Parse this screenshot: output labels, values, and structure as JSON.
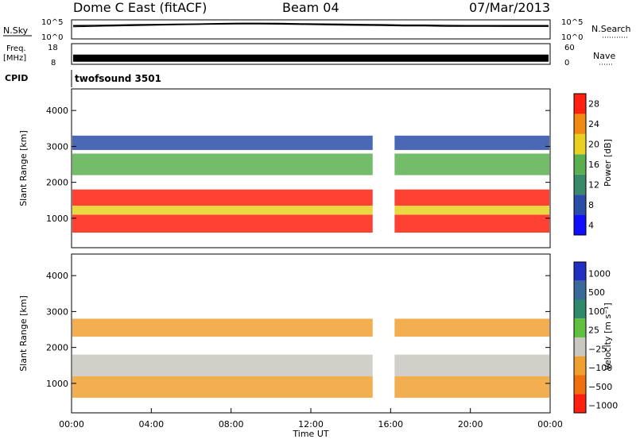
{
  "header": {
    "title": "Dome C East (fitACF)",
    "beam": "Beam 04",
    "date": "07/Mar/2013"
  },
  "chart_data": [
    {
      "type": "line",
      "panel": "nsky",
      "left_label": "N.Sky",
      "right_label": "N.Search",
      "left_ticks": [
        "10^5",
        "10^0"
      ],
      "right_ticks": [
        "10^5",
        "10^0"
      ],
      "yscale": "log",
      "ylim": [
        1,
        100000
      ],
      "series": [
        {
          "values": [
            3000,
            3500,
            4000,
            5000,
            6000,
            7000,
            8000,
            10000,
            12000,
            12000,
            11000,
            9000,
            8000,
            7000,
            6000,
            5000,
            4000,
            4000,
            3500,
            3000,
            3000,
            3000,
            3000,
            3000
          ]
        },
        {
          "values": [
            1500,
            2000,
            2500,
            3000,
            4000,
            5000,
            6000,
            7000,
            8000,
            8000,
            7000,
            6000,
            5000,
            4000,
            3500,
            3000,
            2500,
            2500,
            2000,
            2000,
            2000,
            1800,
            1800,
            1800
          ]
        }
      ]
    },
    {
      "type": "line",
      "panel": "freq",
      "left_label_line1": "Freq.",
      "left_label_line2": "[MHz]",
      "right_label": "Nave",
      "left_ticks": [
        "18",
        "8"
      ],
      "right_ticks": [
        "60",
        "0"
      ],
      "ylim": [
        8,
        18
      ],
      "series": [
        {
          "values": [
            11,
            11,
            11,
            11,
            11,
            11,
            11,
            11,
            11,
            11,
            11,
            11,
            11,
            11,
            11,
            11,
            11,
            11,
            11,
            11,
            11,
            11,
            11,
            11,
            11
          ]
        }
      ]
    },
    {
      "type": "table",
      "panel": "cpid",
      "label": "CPID",
      "value": "twofsound 3501"
    },
    {
      "type": "heatmap",
      "panel": "power",
      "ylabel": "Slant Range [km]",
      "yticks": [
        "1000",
        "2000",
        "3000",
        "4000"
      ],
      "ylim": [
        180,
        4600
      ],
      "xlim_hours": [
        0,
        24
      ],
      "colorbar_label": "Power [dB]",
      "colorbar_ticks": [
        "4",
        "8",
        "12",
        "16",
        "20",
        "24",
        "28"
      ],
      "colorbar_colors": [
        "#1010ff",
        "#2a4ea8",
        "#3a8a6a",
        "#5ab050",
        "#e8d020",
        "#f08a10",
        "#ff2010"
      ],
      "hours": [
        0,
        2,
        4,
        6,
        8,
        10,
        12,
        13,
        14,
        15,
        16,
        17,
        18,
        20,
        22,
        24
      ],
      "range_bands_km": [
        {
          "from": 600,
          "to": 1100,
          "level": 28
        },
        {
          "from": 1100,
          "to": 1350,
          "level": 20
        },
        {
          "from": 1350,
          "to": 1800,
          "level": 26
        },
        {
          "from": 2200,
          "to": 2800,
          "level": 14
        },
        {
          "from": 2900,
          "to": 3300,
          "level": 8
        }
      ]
    },
    {
      "type": "heatmap",
      "panel": "velocity",
      "ylabel": "Slant Range [km]",
      "yticks": [
        "1000",
        "2000",
        "3000",
        "4000"
      ],
      "ylim": [
        180,
        4600
      ],
      "xlabel": "Time UT",
      "xticks": [
        "00:00",
        "04:00",
        "08:00",
        "12:00",
        "16:00",
        "20:00",
        "00:00"
      ],
      "colorbar_label": "Velocity [m s⁻¹]",
      "colorbar_ticks": [
        "1000",
        "500",
        "100",
        "25",
        "−25",
        "−100",
        "−500",
        "−1000"
      ],
      "colorbar_colors": [
        "#2030c0",
        "#3a6a9a",
        "#2e8a6a",
        "#60c040",
        "#c8c8c0",
        "#f0a030",
        "#f07010",
        "#ff2010"
      ],
      "range_bands_km": [
        {
          "from": 600,
          "to": 1200,
          "level": -100
        },
        {
          "from": 1200,
          "to": 1800,
          "level": 0
        },
        {
          "from": 2300,
          "to": 2800,
          "level": -50
        }
      ]
    }
  ]
}
